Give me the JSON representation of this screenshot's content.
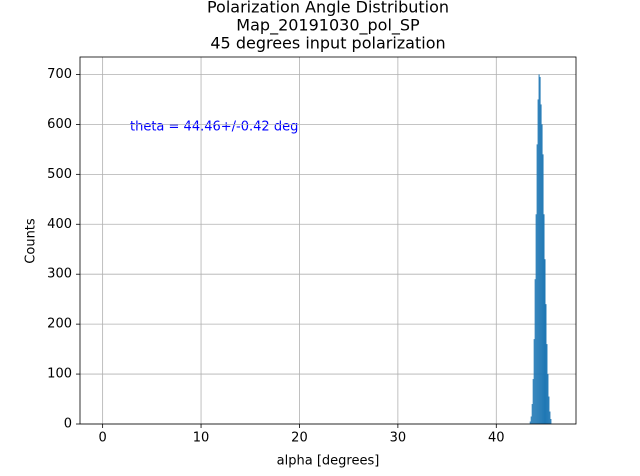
{
  "chart_data": {
    "type": "histogram",
    "title": [
      "Polarization Angle Distribution",
      "Map_20191030_pol_SP",
      "45 degrees input polarization"
    ],
    "x_label": "alpha [degrees]",
    "y_label": "Counts",
    "annotation": "theta = 44.46+/-0.42 deg",
    "bins": [
      43.4,
      43.5,
      43.6,
      43.7,
      43.8,
      43.9,
      44.0,
      44.1,
      44.2,
      44.3,
      44.4,
      44.5,
      44.6,
      44.7,
      44.8,
      44.9,
      45.0,
      45.1,
      45.2,
      45.3,
      45.4,
      45.5,
      45.6
    ],
    "values": [
      5,
      15,
      40,
      90,
      170,
      290,
      420,
      560,
      650,
      700,
      695,
      640,
      600,
      540,
      420,
      330,
      240,
      160,
      100,
      55,
      25,
      10
    ],
    "color": "#1f77b4",
    "xlim": [
      -2.3,
      48.1
    ],
    "xticks": [
      0,
      10,
      20,
      30,
      40
    ],
    "ylim": [
      0,
      735
    ],
    "yticks": [
      0,
      100,
      200,
      300,
      400,
      500,
      600,
      700
    ],
    "grid": true
  }
}
